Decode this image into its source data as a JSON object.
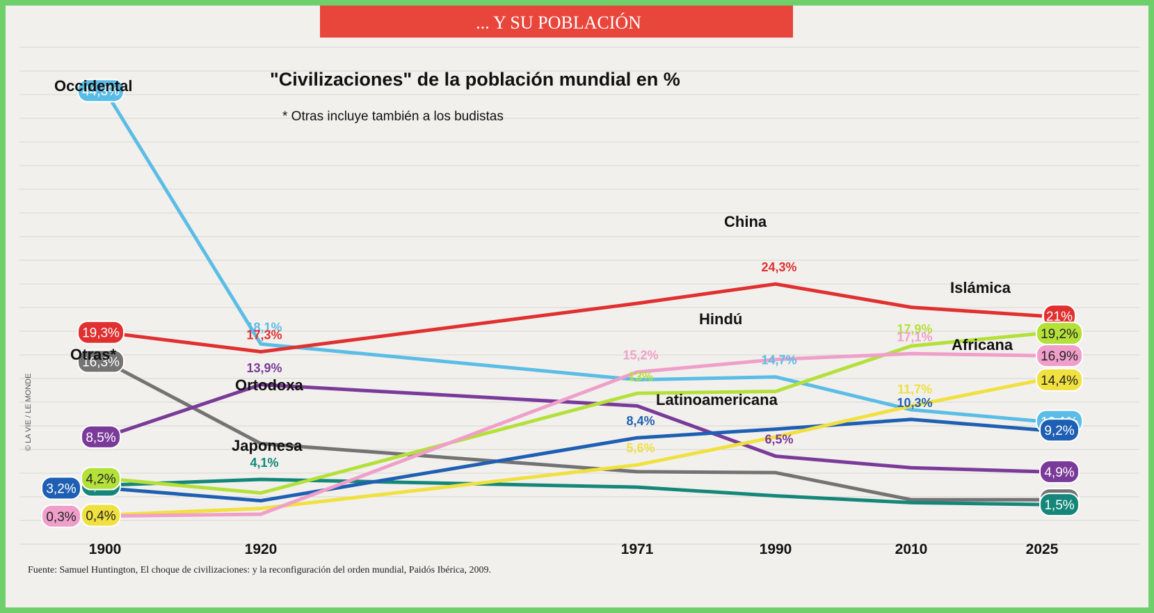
{
  "banner": "... Y SU POBLACIÓN",
  "chart_data": {
    "type": "line",
    "title": "\"Civilizaciones\" de la población mundial en %",
    "subtitle": "* Otras incluye también a los budistas",
    "x": [
      "1900",
      "1920",
      "1971",
      "1990",
      "2010",
      "2025"
    ],
    "x_numeric": [
      1900,
      1920,
      1971,
      1990,
      2010,
      2025
    ],
    "ylim": [
      0,
      46
    ],
    "series": [
      {
        "name": "Occidental",
        "color": "#5bbde6",
        "values": [
          44.3,
          18.1,
          14.4,
          14.7,
          11.3,
          10.1
        ],
        "labels": [
          "44,3%",
          "18,1%",
          "",
          "14,7%",
          "",
          "10,1%"
        ]
      },
      {
        "name": "China",
        "color": "#e03030",
        "values": [
          19.3,
          17.3,
          22.3,
          24.3,
          21.9,
          21
        ],
        "labels": [
          "19,3%",
          "17,3%",
          "",
          "24,3%",
          "",
          "21%"
        ]
      },
      {
        "name": "Otras*",
        "color": "#737373",
        "values": [
          16.3,
          7.8,
          4.9,
          4.8,
          2.0,
          2.0
        ],
        "labels": [
          "16,3%",
          "",
          "",
          "",
          "",
          "2,0%"
        ]
      },
      {
        "name": "Ortodoxa",
        "color": "#7a3a9a",
        "values": [
          8.5,
          13.9,
          11.7,
          6.5,
          5.3,
          4.9
        ],
        "labels": [
          "8,5%",
          "13,9%",
          "",
          "6,5%",
          "",
          "4,9%"
        ]
      },
      {
        "name": "Japonesa",
        "color": "#15877a",
        "values": [
          3.5,
          4.1,
          3.3,
          2.4,
          1.7,
          1.5
        ],
        "labels": [
          "3,5%",
          "4,1%",
          "",
          "",
          "",
          "1,5%"
        ]
      },
      {
        "name": "Latinoamericana",
        "color": "#1f5fb3",
        "values": [
          3.2,
          1.9,
          8.4,
          9.3,
          10.3,
          9.2
        ],
        "labels": [
          "3,2%",
          "",
          "8,4%",
          "",
          "10,3%",
          "9,2%"
        ]
      },
      {
        "name": "Africana",
        "color": "#f0e040",
        "values": [
          0.4,
          1.1,
          5.6,
          8.5,
          11.7,
          14.4
        ],
        "labels": [
          "0,4%",
          "",
          "5,6%",
          "",
          "11,7%",
          "14,4%"
        ]
      },
      {
        "name": "Islámica",
        "color": "#b4e03a",
        "values": [
          4.2,
          2.7,
          13,
          13.2,
          17.9,
          19.2
        ],
        "labels": [
          "4,2%",
          "",
          "13%",
          "",
          "17,9%",
          "19,2%"
        ]
      },
      {
        "name": "Hindú",
        "color": "#ef9fca",
        "values": [
          0.3,
          0.5,
          15.2,
          16.5,
          17.1,
          16.9
        ],
        "labels": [
          "0,3%",
          "",
          "15,2%",
          "",
          "17,1%",
          "16,9%"
        ]
      }
    ],
    "source": "Fuente: Samuel Huntington, El choque de civilizaciones: y la reconfiguración del orden mundial, Paidós Ibérica, 2009.",
    "credit": "© LA VIE / LE MONDE"
  }
}
